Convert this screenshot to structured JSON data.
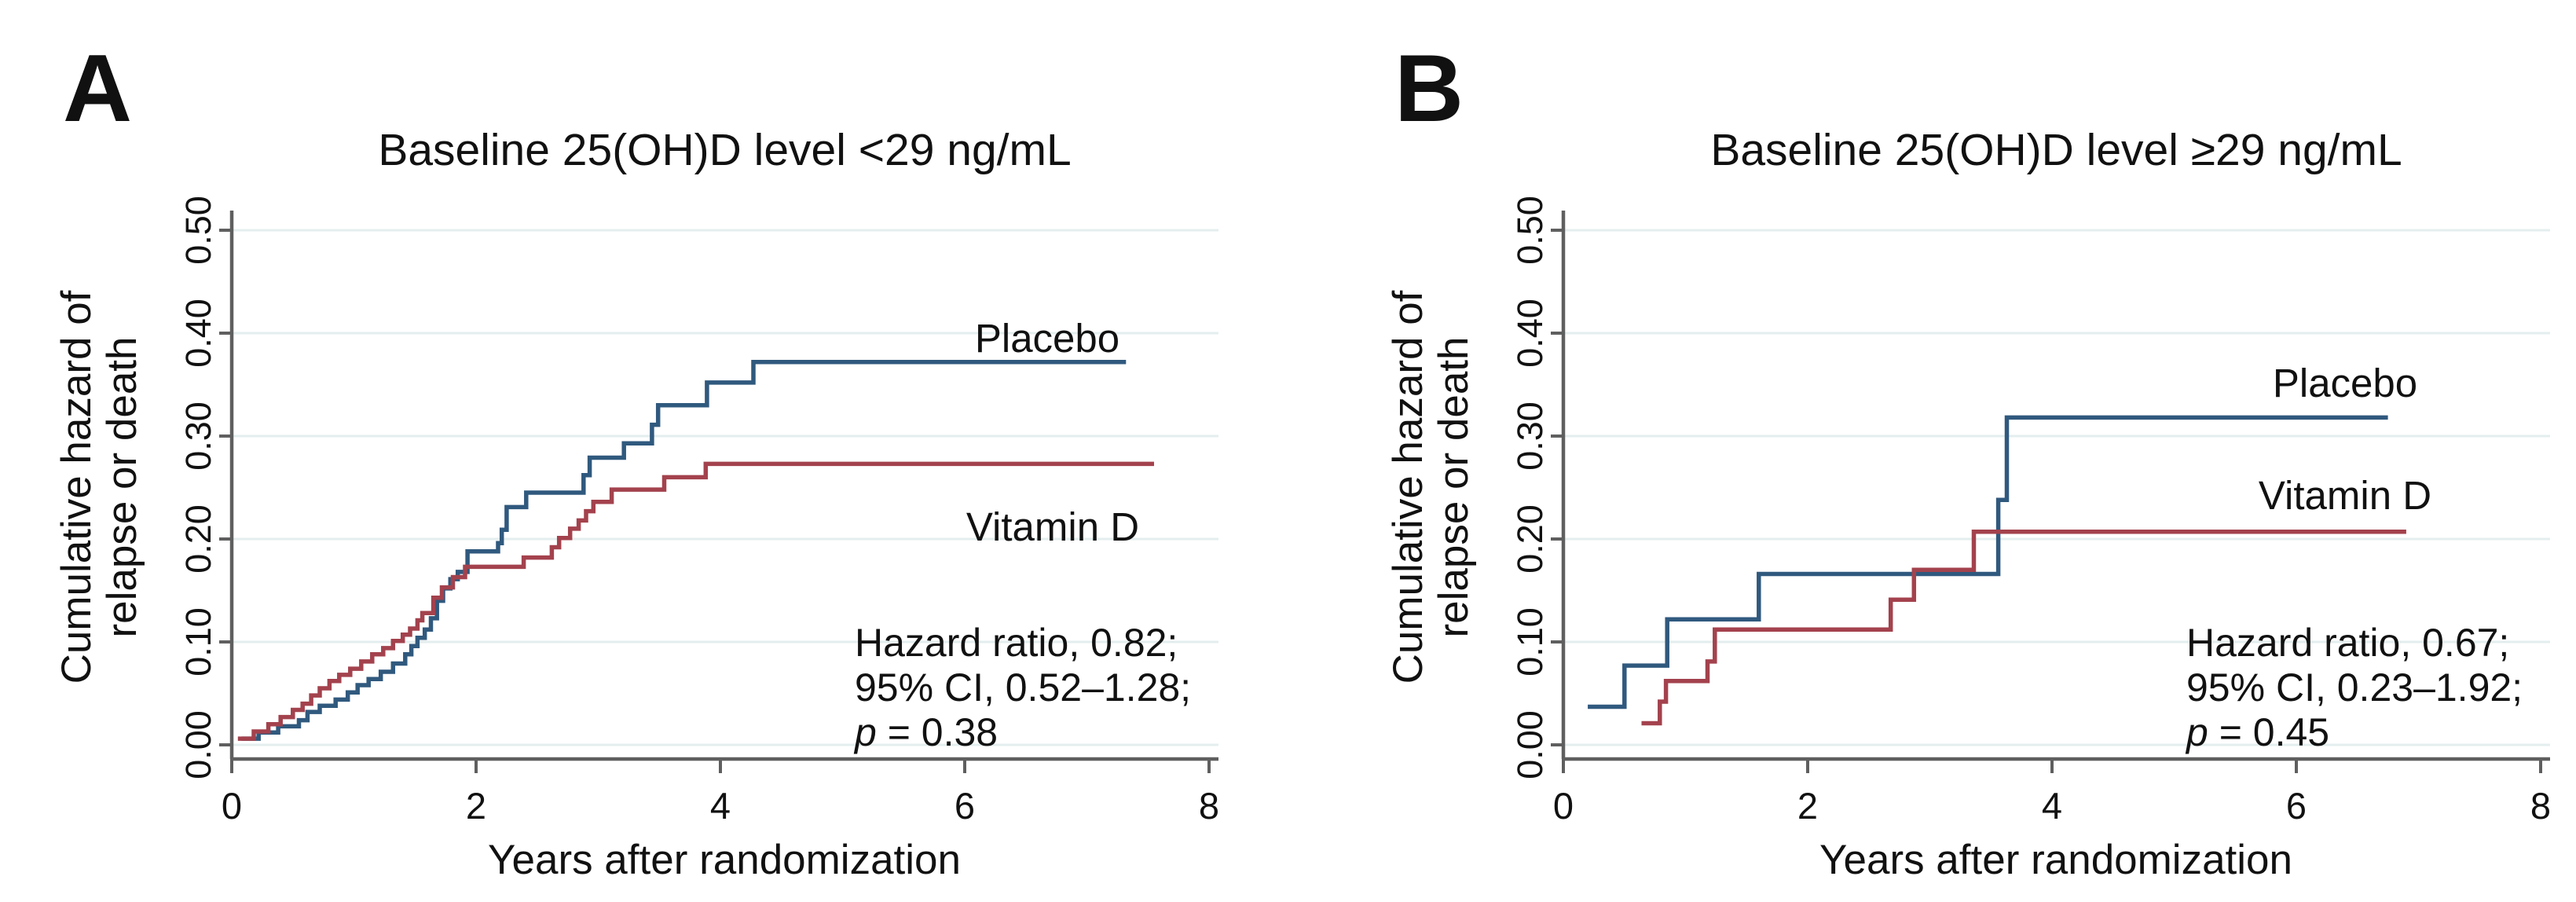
{
  "figure": {
    "xlabel": "Years after randomization",
    "ylabel_line1": "Cumulative hazard of",
    "ylabel_line2": "relapse or death",
    "x_tick_labels": [
      "0",
      "2",
      "4",
      "6",
      "8"
    ],
    "y_tick_labels": [
      "0.00",
      "0.10",
      "0.20",
      "0.30",
      "0.40",
      "0.50"
    ],
    "colors": {
      "placebo_line": "#30597E",
      "vitamin_d_line": "#A3424D",
      "gridline": "#E4EEEE",
      "axis": "#5F5F5F",
      "text": "#111111"
    }
  },
  "chart_data": [
    {
      "panel_letter": "A",
      "type": "line",
      "subtype": "step-cumulative-hazard",
      "title": "Baseline 25(OH)D level <29 ng/mL",
      "xlabel": "Years after randomization",
      "ylabel": "Cumulative hazard of relapse or death",
      "xlim": [
        0,
        8.1
      ],
      "ylim": [
        0,
        0.5
      ],
      "x_ticks": [
        0,
        2,
        4,
        6,
        8
      ],
      "y_ticks": [
        0,
        0.1,
        0.2,
        0.3,
        0.4,
        0.5
      ],
      "grid": "horizontal",
      "legend_position": "labels-at-line-ends",
      "series": [
        {
          "name": "Placebo",
          "color": "#30597E",
          "end_x": 7.32,
          "points": [
            [
              0.08,
              0.006
            ],
            [
              0.22,
              0.012
            ],
            [
              0.38,
              0.018
            ],
            [
              0.55,
              0.024
            ],
            [
              0.62,
              0.032
            ],
            [
              0.72,
              0.038
            ],
            [
              0.85,
              0.044
            ],
            [
              0.95,
              0.051
            ],
            [
              1.03,
              0.058
            ],
            [
              1.12,
              0.064
            ],
            [
              1.22,
              0.071
            ],
            [
              1.32,
              0.079
            ],
            [
              1.42,
              0.088
            ],
            [
              1.47,
              0.096
            ],
            [
              1.52,
              0.104
            ],
            [
              1.58,
              0.112
            ],
            [
              1.63,
              0.123
            ],
            [
              1.68,
              0.14
            ],
            [
              1.73,
              0.152
            ],
            [
              1.79,
              0.161
            ],
            [
              1.85,
              0.168
            ],
            [
              1.93,
              0.188
            ],
            [
              2.18,
              0.196
            ],
            [
              2.21,
              0.209
            ],
            [
              2.25,
              0.231
            ],
            [
              2.41,
              0.245
            ],
            [
              2.88,
              0.262
            ],
            [
              2.93,
              0.279
            ],
            [
              3.21,
              0.293
            ],
            [
              3.44,
              0.311
            ],
            [
              3.49,
              0.33
            ],
            [
              3.89,
              0.352
            ],
            [
              4.27,
              0.372
            ]
          ]
        },
        {
          "name": "Vitamin D",
          "color": "#A3424D",
          "end_x": 7.55,
          "points": [
            [
              0.05,
              0.006
            ],
            [
              0.18,
              0.013
            ],
            [
              0.3,
              0.02
            ],
            [
              0.4,
              0.027
            ],
            [
              0.5,
              0.034
            ],
            [
              0.58,
              0.04
            ],
            [
              0.65,
              0.048
            ],
            [
              0.72,
              0.055
            ],
            [
              0.8,
              0.062
            ],
            [
              0.88,
              0.068
            ],
            [
              0.97,
              0.074
            ],
            [
              1.06,
              0.081
            ],
            [
              1.15,
              0.088
            ],
            [
              1.24,
              0.094
            ],
            [
              1.32,
              0.101
            ],
            [
              1.4,
              0.107
            ],
            [
              1.46,
              0.113
            ],
            [
              1.52,
              0.121
            ],
            [
              1.56,
              0.128
            ],
            [
              1.65,
              0.143
            ],
            [
              1.72,
              0.153
            ],
            [
              1.81,
              0.163
            ],
            [
              1.91,
              0.173
            ],
            [
              2.39,
              0.182
            ],
            [
              2.62,
              0.192
            ],
            [
              2.68,
              0.201
            ],
            [
              2.77,
              0.21
            ],
            [
              2.84,
              0.218
            ],
            [
              2.9,
              0.227
            ],
            [
              2.96,
              0.236
            ],
            [
              3.11,
              0.248
            ],
            [
              3.54,
              0.26
            ],
            [
              3.88,
              0.273
            ]
          ]
        }
      ],
      "annotation": {
        "line1": "Hazard ratio, 0.82;",
        "line2": "95% CI, 0.52–1.28;",
        "p_symbol": "p",
        "p_rest": " = 0.38"
      }
    },
    {
      "panel_letter": "B",
      "type": "line",
      "subtype": "step-cumulative-hazard",
      "title": "Baseline 25(OH)D level ≥29 ng/mL",
      "xlabel": "Years after randomization",
      "ylabel": "Cumulative hazard of relapse or death",
      "xlim": [
        0,
        8.1
      ],
      "ylim": [
        0,
        0.5
      ],
      "x_ticks": [
        0,
        2,
        4,
        6,
        8
      ],
      "y_ticks": [
        0,
        0.1,
        0.2,
        0.3,
        0.4,
        0.5
      ],
      "grid": "horizontal",
      "legend_position": "labels-at-line-ends",
      "series": [
        {
          "name": "Placebo",
          "color": "#30597E",
          "end_x": 6.75,
          "points": [
            [
              0.2,
              0.037
            ],
            [
              0.5,
              0.077
            ],
            [
              0.85,
              0.122
            ],
            [
              1.6,
              0.166
            ],
            [
              3.56,
              0.238
            ],
            [
              3.63,
              0.318
            ]
          ]
        },
        {
          "name": "Vitamin D",
          "color": "#A3424D",
          "end_x": 6.9,
          "points": [
            [
              0.64,
              0.021
            ],
            [
              0.79,
              0.042
            ],
            [
              0.84,
              0.062
            ],
            [
              1.18,
              0.081
            ],
            [
              1.24,
              0.112
            ],
            [
              2.68,
              0.141
            ],
            [
              2.87,
              0.17
            ],
            [
              3.36,
              0.207
            ]
          ]
        }
      ],
      "annotation": {
        "line1": "Hazard ratio, 0.67;",
        "line2": "95% CI, 0.23–1.92;",
        "p_symbol": "p",
        "p_rest": " = 0.45"
      }
    }
  ]
}
